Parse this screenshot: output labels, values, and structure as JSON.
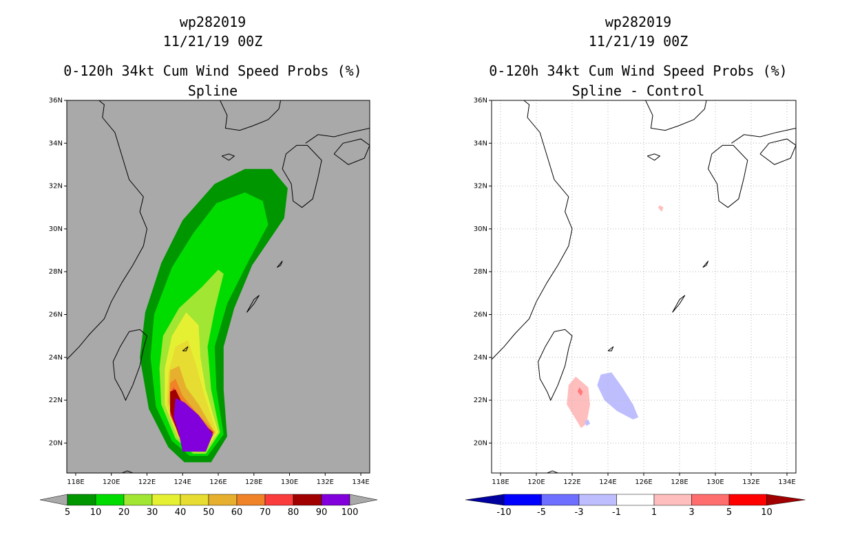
{
  "panels": [
    {
      "id": "left",
      "title_line1": "wp282019",
      "title_line2": "11/21/19 00Z",
      "title_line3": "0-120h 34kt Cum Wind Speed Probs (%)",
      "subtitle": "Spline",
      "background": "#a9a9a9"
    },
    {
      "id": "right",
      "title_line1": "wp282019",
      "title_line2": "11/21/19 00Z",
      "title_line3": "0-120h 34kt Cum Wind Speed Probs (%)",
      "subtitle": "Spline - Control",
      "background": "#ffffff"
    }
  ],
  "chart_data": [
    {
      "type": "heatmap",
      "name": "spline-probability-map",
      "title": "0-120h 34kt Cum Wind Speed Probs (%)",
      "subtitle": "Spline",
      "x_range": [
        117.5,
        134.5
      ],
      "y_range": [
        18.6,
        36
      ],
      "x_ticks": [
        "118E",
        "120E",
        "122E",
        "124E",
        "126E",
        "128E",
        "130E",
        "132E",
        "134E"
      ],
      "y_ticks": [
        "20N",
        "22N",
        "24N",
        "26N",
        "28N",
        "30N",
        "32N",
        "34N",
        "36N"
      ],
      "legend": {
        "colors": [
          "#009600",
          "#00dc00",
          "#a0e632",
          "#e6f032",
          "#e6dc32",
          "#e6af2d",
          "#f08228",
          "#fa3c3c",
          "#a00000",
          "#8200dc"
        ],
        "labels": [
          "5",
          "10",
          "20",
          "30",
          "40",
          "50",
          "60",
          "70",
          "80",
          "90",
          "100"
        ]
      },
      "contours": [
        {
          "level": 5,
          "color": "#009600",
          "lonlat": [
            [
              124.1,
              19.1
            ],
            [
              125.6,
              19.1
            ],
            [
              126.5,
              20.3
            ],
            [
              126.3,
              22.5
            ],
            [
              126.3,
              24.5
            ],
            [
              126.9,
              26.3
            ],
            [
              127.9,
              28.3
            ],
            [
              129.7,
              30.5
            ],
            [
              129.9,
              31.9
            ],
            [
              129.0,
              32.8
            ],
            [
              127.5,
              32.8
            ],
            [
              125.8,
              32.1
            ],
            [
              124.0,
              30.4
            ],
            [
              122.8,
              28.4
            ],
            [
              121.9,
              26.1
            ],
            [
              121.6,
              24.0
            ],
            [
              122.1,
              21.6
            ],
            [
              123.2,
              19.8
            ]
          ]
        },
        {
          "level": 10,
          "color": "#00dc00",
          "lonlat": [
            [
              124.4,
              19.4
            ],
            [
              125.4,
              19.4
            ],
            [
              126.3,
              20.4
            ],
            [
              125.9,
              22.5
            ],
            [
              125.8,
              24.5
            ],
            [
              126.5,
              26.5
            ],
            [
              127.7,
              28.5
            ],
            [
              128.8,
              30.2
            ],
            [
              128.5,
              31.3
            ],
            [
              127.5,
              31.7
            ],
            [
              125.9,
              31.2
            ],
            [
              124.6,
              29.8
            ],
            [
              123.4,
              28.2
            ],
            [
              122.4,
              26.0
            ],
            [
              122.2,
              24.0
            ],
            [
              122.5,
              21.7
            ],
            [
              123.4,
              20.1
            ]
          ]
        },
        {
          "level": 20,
          "color": "#a0e632",
          "lonlat": [
            [
              124.6,
              19.5
            ],
            [
              125.3,
              19.5
            ],
            [
              126.1,
              20.5
            ],
            [
              125.6,
              22.5
            ],
            [
              125.4,
              24.5
            ],
            [
              125.8,
              26.2
            ],
            [
              126.3,
              27.9
            ],
            [
              126.0,
              28.1
            ],
            [
              125.1,
              27.3
            ],
            [
              123.8,
              26.3
            ],
            [
              122.9,
              25.0
            ],
            [
              122.7,
              23.5
            ],
            [
              122.8,
              21.8
            ],
            [
              123.6,
              20.2
            ]
          ]
        },
        {
          "level": 30,
          "color": "#e6f032",
          "lonlat": [
            [
              124.7,
              19.6
            ],
            [
              125.2,
              19.6
            ],
            [
              126.0,
              20.5
            ],
            [
              125.3,
              22.5
            ],
            [
              125.0,
              24.0
            ],
            [
              124.9,
              25.5
            ],
            [
              124.2,
              26.1
            ],
            [
              123.4,
              25.0
            ],
            [
              123.0,
              23.5
            ],
            [
              123.0,
              21.8
            ],
            [
              123.7,
              20.3
            ]
          ]
        },
        {
          "level": 40,
          "color": "#e6dc32",
          "lonlat": [
            [
              124.8,
              19.6
            ],
            [
              125.2,
              19.6
            ],
            [
              125.9,
              20.5
            ],
            [
              125.2,
              22.3
            ],
            [
              124.7,
              23.8
            ],
            [
              124.3,
              24.8
            ],
            [
              123.6,
              24.5
            ],
            [
              123.2,
              23.3
            ],
            [
              123.1,
              21.8
            ],
            [
              123.7,
              20.3
            ]
          ]
        },
        {
          "level": 50,
          "color": "#e6af2d",
          "lonlat": [
            [
              124.8,
              19.7
            ],
            [
              125.2,
              19.7
            ],
            [
              125.8,
              20.5
            ],
            [
              124.9,
              21.8
            ],
            [
              124.2,
              22.6
            ],
            [
              123.8,
              23.6
            ],
            [
              123.3,
              23.4
            ],
            [
              123.2,
              21.9
            ],
            [
              123.8,
              20.4
            ]
          ]
        },
        {
          "level": 60,
          "color": "#f08228",
          "lonlat": [
            [
              124.8,
              19.7
            ],
            [
              125.2,
              19.7
            ],
            [
              125.8,
              20.5
            ],
            [
              124.7,
              21.5
            ],
            [
              124.0,
              22.2
            ],
            [
              123.6,
              23.0
            ],
            [
              123.3,
              22.8
            ],
            [
              123.3,
              21.9
            ],
            [
              123.8,
              20.4
            ]
          ]
        },
        {
          "level": 70,
          "color": "#fa3c3c",
          "lonlat": [
            [
              124.8,
              19.7
            ],
            [
              125.2,
              19.7
            ],
            [
              125.7,
              20.5
            ],
            [
              124.5,
              21.4
            ],
            [
              123.9,
              21.9
            ],
            [
              123.5,
              22.6
            ],
            [
              123.3,
              22.3
            ],
            [
              123.3,
              21.3
            ],
            [
              123.8,
              20.4
            ]
          ]
        },
        {
          "level": 80,
          "color": "#a00000",
          "lonlat": [
            [
              124.8,
              19.7
            ],
            [
              125.2,
              19.7
            ],
            [
              125.7,
              20.5
            ],
            [
              124.5,
              21.4
            ],
            [
              123.9,
              22.0
            ],
            [
              123.6,
              22.5
            ],
            [
              123.3,
              22.4
            ],
            [
              123.3,
              21.5
            ],
            [
              123.8,
              20.3
            ]
          ]
        },
        {
          "level": 90,
          "color": "#8200dc",
          "lonlat": [
            [
              124.0,
              19.6
            ],
            [
              125.3,
              19.6
            ],
            [
              125.7,
              20.4
            ],
            [
              124.9,
              21.3
            ],
            [
              124.1,
              21.9
            ],
            [
              123.6,
              22.1
            ],
            [
              123.5,
              21.2
            ],
            [
              123.8,
              20.4
            ]
          ]
        }
      ]
    },
    {
      "type": "heatmap",
      "name": "spline-minus-control-difference-map",
      "title": "0-120h 34kt Cum Wind Speed Probs (%)",
      "subtitle": "Spline - Control",
      "x_range": [
        117.5,
        134.5
      ],
      "y_range": [
        18.6,
        36
      ],
      "x_ticks": [
        "118E",
        "120E",
        "122E",
        "124E",
        "126E",
        "128E",
        "130E",
        "132E",
        "134E"
      ],
      "y_ticks": [
        "20N",
        "22N",
        "24N",
        "26N",
        "28N",
        "30N",
        "32N",
        "34N",
        "36N"
      ],
      "grid": true,
      "legend": {
        "colors": [
          "#0000a0",
          "#0000ff",
          "#6e6eff",
          "#bebeff",
          "#ffffff",
          "#ffbebe",
          "#ff6e6e",
          "#ff0000",
          "#a00000"
        ],
        "labels": [
          "-10",
          "-5",
          "-3",
          "-1",
          "1",
          "3",
          "5",
          "10"
        ]
      },
      "contours": [
        {
          "level": 1,
          "color": "#ffbebe",
          "lonlat": [
            [
              121.8,
              22.7
            ],
            [
              122.2,
              23.1
            ],
            [
              122.9,
              22.6
            ],
            [
              123.0,
              21.8
            ],
            [
              122.8,
              20.9
            ],
            [
              122.5,
              20.7
            ],
            [
              121.7,
              21.8
            ]
          ]
        },
        {
          "level": 3,
          "color": "#ff7a7a",
          "lonlat": [
            [
              122.4,
              22.6
            ],
            [
              122.6,
              22.4
            ],
            [
              122.5,
              22.2
            ],
            [
              122.3,
              22.4
            ]
          ]
        },
        {
          "level": 1,
          "color": "#ffbebe",
          "lonlat": [
            [
              126.9,
              31.1
            ],
            [
              127.1,
              31.0
            ],
            [
              127.0,
              30.8
            ],
            [
              126.8,
              31.0
            ]
          ]
        },
        {
          "level": -1,
          "color": "#bebeff",
          "lonlat": [
            [
              123.6,
              23.2
            ],
            [
              124.2,
              23.3
            ],
            [
              124.8,
              22.6
            ],
            [
              125.4,
              21.8
            ],
            [
              125.7,
              21.2
            ],
            [
              125.4,
              21.1
            ],
            [
              124.5,
              21.5
            ],
            [
              123.8,
              22.0
            ],
            [
              123.4,
              22.7
            ]
          ]
        },
        {
          "level": -1,
          "color": "#bebeff",
          "lonlat": [
            [
              122.7,
              21.0
            ],
            [
              122.9,
              21.1
            ],
            [
              123.0,
              20.9
            ],
            [
              122.8,
              20.8
            ]
          ]
        }
      ]
    }
  ]
}
